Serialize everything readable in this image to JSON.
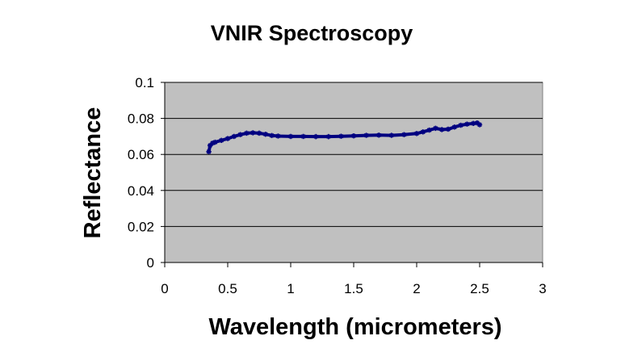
{
  "chart_data": {
    "type": "scatter",
    "title": "VNIR Spectroscopy",
    "xlabel": "Wavelength (micrometers)",
    "ylabel": "Reflectance",
    "xlim": [
      0,
      3
    ],
    "ylim": [
      0,
      0.1
    ],
    "x_ticks": [
      "0",
      "0.5",
      "1",
      "1.5",
      "2",
      "2.5",
      "3"
    ],
    "y_ticks": [
      "0",
      "0.02",
      "0.04",
      "0.06",
      "0.08",
      "0.1"
    ],
    "grid": "horizontal",
    "legend": "none",
    "plot_background": "#c0c0c0",
    "series": [
      {
        "color": "#000080",
        "marker": "star",
        "x": [
          0.35,
          0.36,
          0.38,
          0.4,
          0.45,
          0.5,
          0.55,
          0.6,
          0.65,
          0.7,
          0.75,
          0.8,
          0.85,
          0.9,
          1.0,
          1.1,
          1.2,
          1.3,
          1.4,
          1.5,
          1.6,
          1.7,
          1.8,
          1.9,
          2.0,
          2.05,
          2.1,
          2.15,
          2.2,
          2.25,
          2.3,
          2.35,
          2.4,
          2.45,
          2.48,
          2.5
        ],
        "y": [
          0.0615,
          0.065,
          0.0663,
          0.0668,
          0.0678,
          0.0688,
          0.07,
          0.071,
          0.0718,
          0.072,
          0.0718,
          0.0712,
          0.0705,
          0.0702,
          0.07,
          0.07,
          0.0699,
          0.0699,
          0.0701,
          0.0703,
          0.0706,
          0.0707,
          0.0706,
          0.071,
          0.0716,
          0.0725,
          0.0735,
          0.0745,
          0.0738,
          0.074,
          0.0752,
          0.0762,
          0.0768,
          0.0772,
          0.0775,
          0.0765
        ]
      }
    ]
  }
}
